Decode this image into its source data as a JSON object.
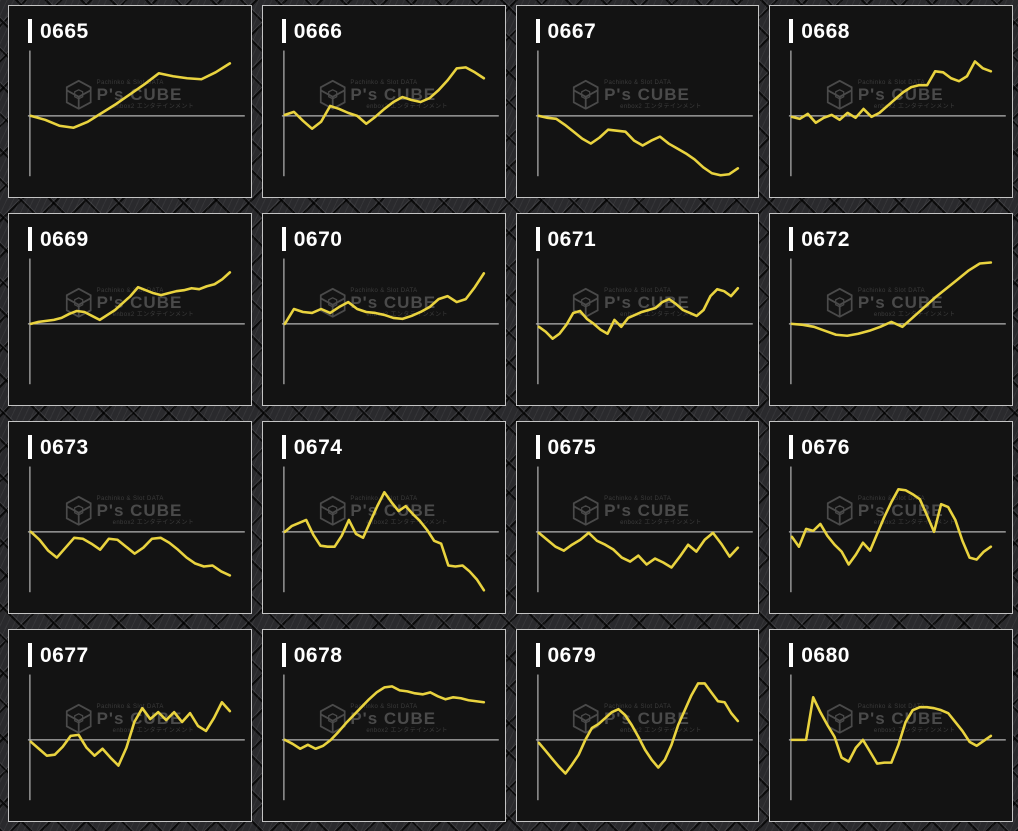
{
  "colors": {
    "page_bg": "#2a2a2d",
    "panel_bg": "#131313",
    "panel_border": "#c4c4c4",
    "axis": "#b5b5b5",
    "line": "#e9d33f",
    "label": "#ffffff",
    "watermark": "#4a4a4a",
    "watermark_dim": "#3c3c3c"
  },
  "watermark": {
    "top_line": "Pachinko & Slot DATA",
    "brand": "P's CUBE",
    "bottom_line": "enbox2 エンタテインメント"
  },
  "chart_config": {
    "type": "line",
    "grid": false,
    "tick_labels": "none",
    "axes": "left y-axis line and zero baseline only",
    "y_units": "relative payout (px above/below zero baseline)",
    "x": "session time, unlabeled, evenly spaced"
  },
  "chart_data": [
    {
      "type": "line",
      "title": "0665",
      "values": [
        0,
        -4,
        -10,
        -12,
        -6,
        3,
        12,
        22,
        32,
        43,
        40,
        38,
        37,
        44,
        53
      ]
    },
    {
      "type": "line",
      "title": "0666",
      "values": [
        1,
        4,
        -5,
        -13,
        -6,
        10,
        7,
        3,
        0,
        -8,
        -1,
        7,
        14,
        19,
        16,
        14,
        18,
        26,
        36,
        48,
        49,
        44,
        38
      ]
    },
    {
      "type": "line",
      "title": "0667",
      "values": [
        0,
        -2,
        -3,
        -9,
        -16,
        -23,
        -28,
        -22,
        -14,
        -15,
        -16,
        -25,
        -30,
        -25,
        -21,
        -28,
        -33,
        -38,
        -44,
        -52,
        -58,
        -60,
        -59,
        -53
      ]
    },
    {
      "type": "line",
      "title": "0668",
      "values": [
        -1,
        -3,
        2,
        -7,
        -2,
        1,
        -4,
        3,
        -2,
        7,
        -1,
        3,
        10,
        17,
        24,
        29,
        31,
        31,
        45,
        44,
        38,
        35,
        40,
        55,
        48,
        45
      ]
    },
    {
      "type": "line",
      "title": "0669",
      "values": [
        0,
        2,
        3,
        4,
        6,
        10,
        13,
        12,
        8,
        4,
        9,
        14,
        21,
        28,
        37,
        34,
        31,
        29,
        31,
        33,
        34,
        36,
        35,
        38,
        40,
        45,
        52
      ]
    },
    {
      "type": "line",
      "title": "0670",
      "values": [
        0,
        15,
        12,
        11,
        15,
        11,
        17,
        22,
        15,
        12,
        11,
        9,
        6,
        5,
        8,
        12,
        17,
        25,
        28,
        22,
        25,
        37,
        51
      ]
    },
    {
      "type": "line",
      "title": "0671",
      "values": [
        -3,
        -8,
        -15,
        -10,
        -1,
        11,
        13,
        5,
        0,
        -6,
        -10,
        4,
        -3,
        6,
        9,
        12,
        14,
        16,
        22,
        25,
        20,
        14,
        11,
        8,
        14,
        28,
        35,
        33,
        28,
        36
      ]
    },
    {
      "type": "line",
      "title": "0672",
      "values": [
        0,
        -1,
        -3,
        -7,
        -11,
        -12,
        -10,
        -7,
        -3,
        2,
        -3,
        7,
        17,
        27,
        36,
        45,
        54,
        61,
        62
      ]
    },
    {
      "type": "line",
      "title": "0673",
      "values": [
        0,
        -8,
        -19,
        -26,
        -16,
        -6,
        -7,
        -12,
        -18,
        -7,
        -8,
        -15,
        -22,
        -16,
        -7,
        -6,
        -11,
        -18,
        -26,
        -32,
        -35,
        -34,
        -40,
        -44
      ]
    },
    {
      "type": "line",
      "title": "0674",
      "values": [
        0,
        6,
        9,
        12,
        -3,
        -14,
        -15,
        -15,
        -4,
        12,
        -2,
        -6,
        10,
        26,
        40,
        30,
        21,
        26,
        18,
        11,
        2,
        -9,
        -12,
        -34,
        -35,
        -34,
        -40,
        -48,
        -59
      ]
    },
    {
      "type": "line",
      "title": "0675",
      "values": [
        -1,
        -8,
        -15,
        -19,
        -13,
        -8,
        -1,
        -9,
        -13,
        -18,
        -26,
        -30,
        -24,
        -33,
        -27,
        -31,
        -36,
        -25,
        -13,
        -20,
        -8,
        -1,
        -12,
        -25,
        -16
      ]
    },
    {
      "type": "line",
      "title": "0676",
      "values": [
        -5,
        -15,
        3,
        1,
        8,
        -4,
        -13,
        -20,
        -33,
        -23,
        -11,
        -19,
        -2,
        15,
        30,
        43,
        42,
        38,
        33,
        17,
        0,
        28,
        25,
        12,
        -9,
        -26,
        -28,
        -20,
        -15
      ]
    },
    {
      "type": "line",
      "title": "0677",
      "values": [
        -2,
        -9,
        -16,
        -15,
        -7,
        4,
        5,
        -8,
        -16,
        -9,
        -18,
        -26,
        -8,
        18,
        32,
        21,
        28,
        20,
        28,
        18,
        27,
        14,
        9,
        22,
        38,
        29
      ]
    },
    {
      "type": "line",
      "title": "0678",
      "values": [
        0,
        -4,
        -9,
        -5,
        -9,
        -6,
        0,
        8,
        17,
        25,
        33,
        41,
        48,
        53,
        54,
        50,
        49,
        47,
        46,
        48,
        44,
        41,
        43,
        42,
        40,
        39,
        38
      ]
    },
    {
      "type": "line",
      "title": "0679",
      "values": [
        -3,
        -11,
        -19,
        -27,
        -34,
        -25,
        -15,
        0,
        12,
        16,
        22,
        28,
        31,
        25,
        15,
        3,
        -10,
        -20,
        -28,
        -20,
        -5,
        15,
        30,
        45,
        57,
        57,
        48,
        39,
        38,
        27,
        19
      ]
    },
    {
      "type": "line",
      "title": "0680",
      "values": [
        0,
        0,
        0,
        43,
        28,
        15,
        3,
        -18,
        -22,
        -8,
        0,
        -12,
        -24,
        -23,
        -23,
        -5,
        18,
        30,
        33,
        33,
        32,
        30,
        27,
        18,
        9,
        -2,
        -6,
        -1,
        4
      ]
    }
  ]
}
